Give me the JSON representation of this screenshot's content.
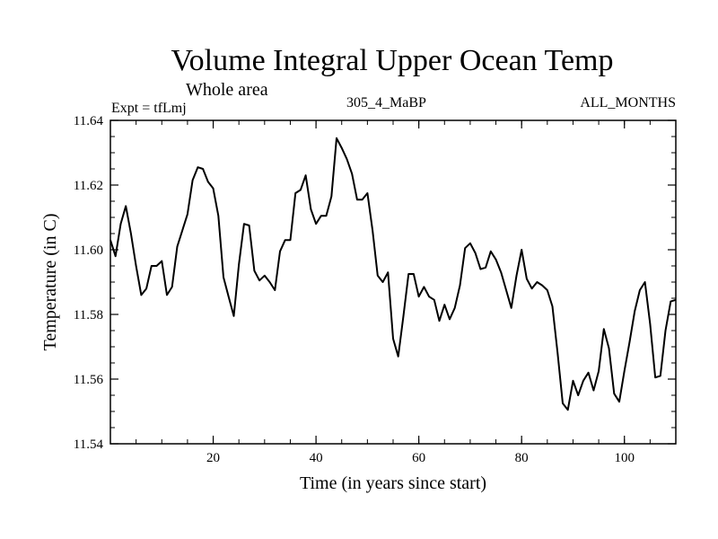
{
  "chart_data": {
    "type": "line",
    "title": "Volume Integral Upper Ocean Temp",
    "subtitle": "Whole area",
    "expt_label": "Expt = tfLmj",
    "run_label": "305_4_MaBP",
    "months_label": "ALL_MONTHS",
    "xlabel": "Time (in years since start)",
    "ylabel": "Temperature (in C)",
    "xlim": [
      0,
      110
    ],
    "ylim": [
      11.54,
      11.64
    ],
    "xticks": [
      20,
      40,
      60,
      80,
      100
    ],
    "xtick_labels": [
      "20",
      "40",
      "60",
      "80",
      "100"
    ],
    "yticks": [
      11.54,
      11.56,
      11.58,
      11.6,
      11.62,
      11.64
    ],
    "ytick_labels": [
      "11.54",
      "11.56",
      "11.58",
      "11.60",
      "11.62",
      "11.64"
    ],
    "series": [
      {
        "name": "Temperature",
        "color": "#000000",
        "x": [
          0,
          1,
          2,
          3,
          4,
          5,
          6,
          7,
          8,
          9,
          10,
          11,
          12,
          13,
          14,
          15,
          16,
          17,
          18,
          19,
          20,
          21,
          22,
          23,
          24,
          25,
          26,
          27,
          28,
          29,
          30,
          31,
          32,
          33,
          34,
          35,
          36,
          37,
          38,
          39,
          40,
          41,
          42,
          43,
          44,
          45,
          46,
          47,
          48,
          49,
          50,
          51,
          52,
          53,
          54,
          55,
          56,
          57,
          58,
          59,
          60,
          61,
          62,
          63,
          64,
          65,
          66,
          67,
          68,
          69,
          70,
          71,
          72,
          73,
          74,
          75,
          76,
          77,
          78,
          79,
          80,
          81,
          82,
          83,
          84,
          85,
          86,
          87,
          88,
          89,
          90,
          91,
          92,
          93,
          94,
          95,
          96,
          97,
          98,
          99,
          100,
          101,
          102,
          103,
          104,
          105,
          106,
          107,
          108,
          109,
          110
        ],
        "values": [
          11.603,
          11.598,
          11.608,
          11.6135,
          11.605,
          11.595,
          11.586,
          11.588,
          11.595,
          11.595,
          11.5965,
          11.586,
          11.5885,
          11.601,
          11.606,
          11.611,
          11.6215,
          11.6255,
          11.625,
          11.621,
          11.619,
          11.6105,
          11.5915,
          11.5855,
          11.5795,
          11.5955,
          11.608,
          11.6075,
          11.5935,
          11.5905,
          11.592,
          11.59,
          11.5875,
          11.5995,
          11.603,
          11.603,
          11.6175,
          11.6185,
          11.623,
          11.6125,
          11.608,
          11.6105,
          11.6105,
          11.6165,
          11.6345,
          11.6315,
          11.628,
          11.6235,
          11.6155,
          11.6155,
          11.6175,
          11.606,
          11.592,
          11.59,
          11.593,
          11.5725,
          11.567,
          11.5795,
          11.5925,
          11.5925,
          11.5855,
          11.5885,
          11.5855,
          11.5845,
          11.578,
          11.583,
          11.5785,
          11.582,
          11.589,
          11.6005,
          11.602,
          11.599,
          11.594,
          11.5945,
          11.5995,
          11.597,
          11.593,
          11.5875,
          11.582,
          11.592,
          11.6,
          11.591,
          11.588,
          11.59,
          11.589,
          11.5875,
          11.5825,
          11.568,
          11.5525,
          11.5505,
          11.5595,
          11.555,
          11.5595,
          11.562,
          11.5565,
          11.5625,
          11.5755,
          11.5695,
          11.5555,
          11.553,
          11.5625,
          11.5715,
          11.581,
          11.5875,
          11.59,
          11.577,
          11.5605,
          11.561,
          11.575,
          11.584,
          11.5845
        ]
      }
    ]
  }
}
